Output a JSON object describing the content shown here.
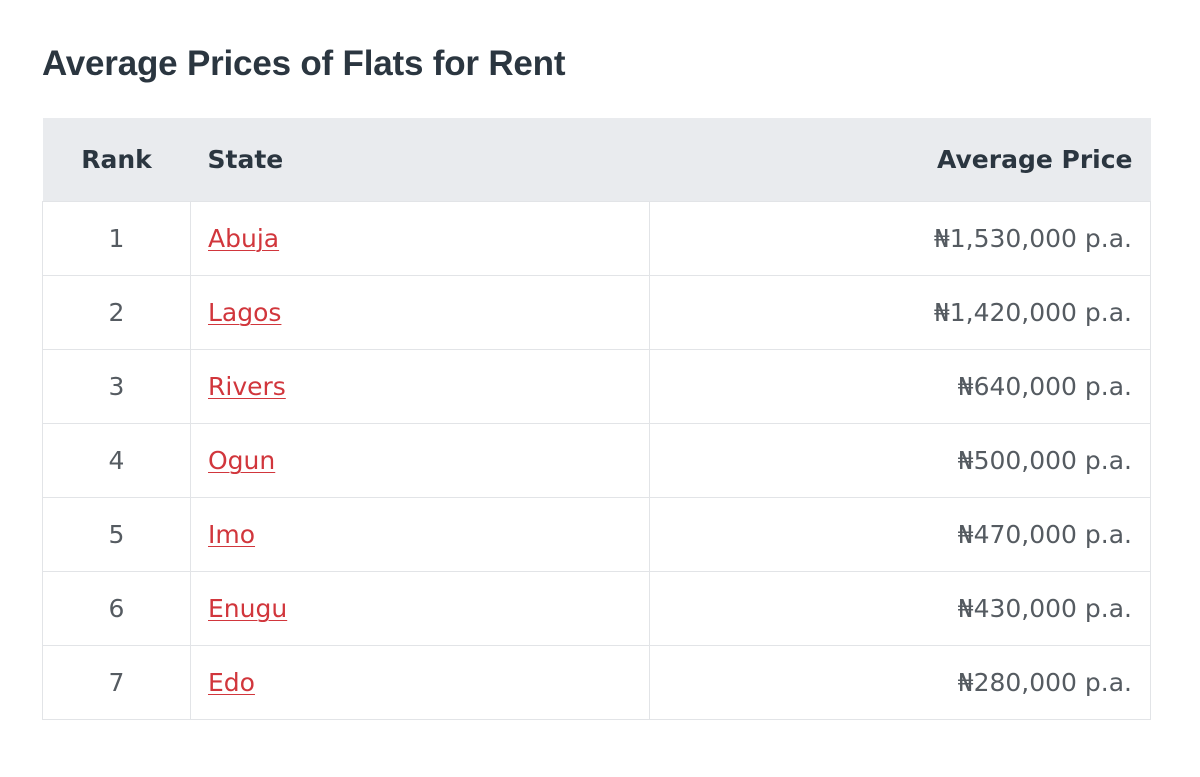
{
  "title": "Average Prices of Flats for Rent",
  "table": {
    "headers": {
      "rank": "Rank",
      "state": "State",
      "price": "Average Price"
    },
    "rows": [
      {
        "rank": "1",
        "state": "Abuja",
        "price": "₦1,530,000 p.a."
      },
      {
        "rank": "2",
        "state": "Lagos",
        "price": "₦1,420,000 p.a."
      },
      {
        "rank": "3",
        "state": "Rivers",
        "price": "₦640,000 p.a."
      },
      {
        "rank": "4",
        "state": "Ogun",
        "price": "₦500,000 p.a."
      },
      {
        "rank": "5",
        "state": "Imo",
        "price": "₦470,000 p.a."
      },
      {
        "rank": "6",
        "state": "Enugu",
        "price": "₦430,000 p.a."
      },
      {
        "rank": "7",
        "state": "Edo",
        "price": "₦280,000 p.a."
      }
    ]
  },
  "colors": {
    "heading": "#2b3640",
    "header_bg": "#e9ebee",
    "link": "#d1363c",
    "border": "#e2e4e7",
    "body_text": "#555b61"
  }
}
